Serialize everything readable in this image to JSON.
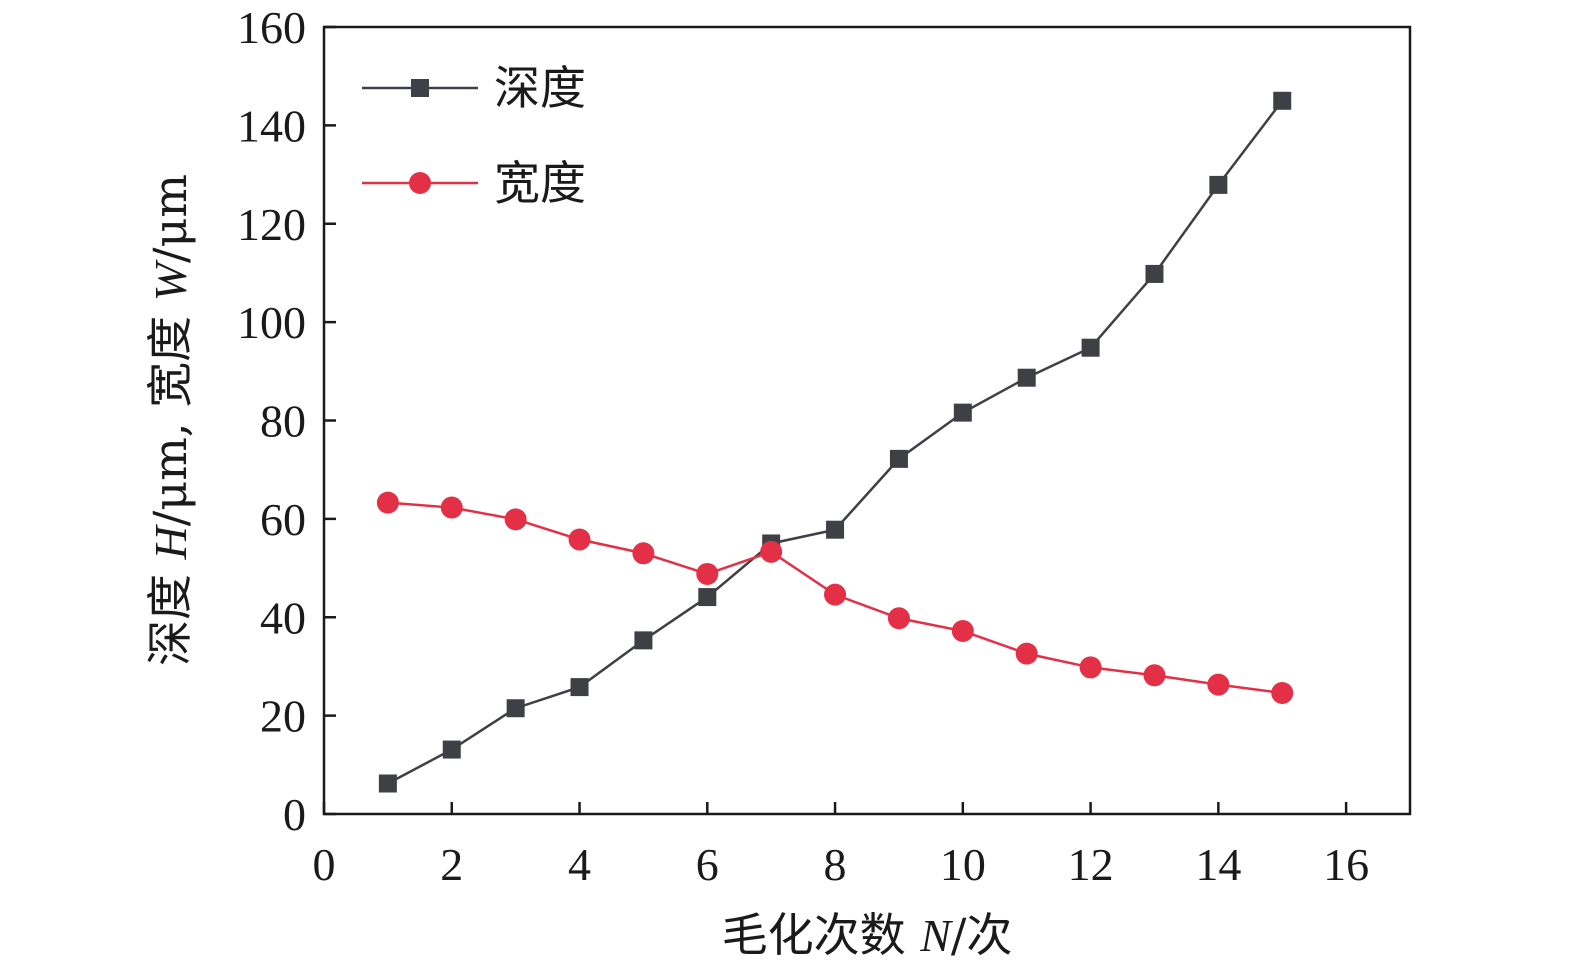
{
  "chart_data": {
    "type": "line",
    "xlabel": {
      "prefix": "毛化次数 ",
      "var": "N",
      "suffix": "/次"
    },
    "ylabel": {
      "p1": "深度 ",
      "v1": "H",
      "p2": "/μm, 宽度 ",
      "v2": "W",
      "p3": "/μm"
    },
    "xlim": [
      0,
      17
    ],
    "ylim": [
      0,
      160
    ],
    "xticks": [
      0,
      2,
      4,
      6,
      8,
      10,
      12,
      14,
      16
    ],
    "yticks": [
      0,
      20,
      40,
      60,
      80,
      100,
      120,
      140,
      160
    ],
    "grid": false,
    "legend_position": "top-left",
    "x": [
      1,
      2,
      3,
      4,
      5,
      6,
      7,
      8,
      9,
      10,
      11,
      12,
      13,
      14,
      15
    ],
    "series": [
      {
        "name": "深度",
        "marker": "square",
        "color": "#3f4045",
        "values": [
          6.2,
          13.1,
          21.5,
          25.8,
          35.3,
          44.1,
          55.0,
          57.8,
          72.2,
          81.6,
          88.7,
          94.8,
          109.8,
          127.9,
          145.0
        ]
      },
      {
        "name": "宽度",
        "marker": "circle",
        "color": "#e33046",
        "values": [
          63.3,
          62.3,
          59.9,
          55.8,
          53.0,
          48.8,
          53.3,
          44.6,
          39.8,
          37.2,
          32.6,
          29.8,
          28.2,
          26.3,
          24.6
        ]
      }
    ]
  }
}
